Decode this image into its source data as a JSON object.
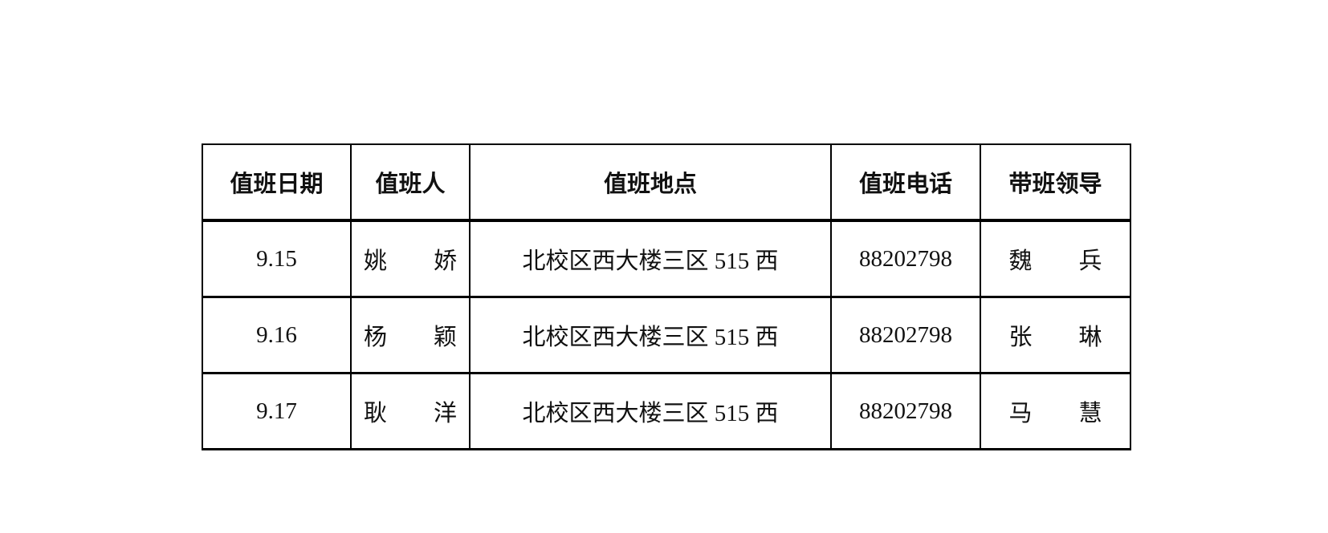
{
  "table": {
    "headers": [
      "值班日期",
      "值班人",
      "值班地点",
      "值班电话",
      "带班领导"
    ],
    "rows": [
      {
        "date": "9.15",
        "person": "姚　　娇",
        "location": "北校区西大楼三区 515 西",
        "phone": "88202798",
        "leader": "魏　　兵"
      },
      {
        "date": "9.16",
        "person": "杨　　颖",
        "location": "北校区西大楼三区 515 西",
        "phone": "88202798",
        "leader": "张　　琳"
      },
      {
        "date": "9.17",
        "person": "耿　　洋",
        "location": "北校区西大楼三区 515 西",
        "phone": "88202798",
        "leader": "马　　慧"
      }
    ]
  }
}
